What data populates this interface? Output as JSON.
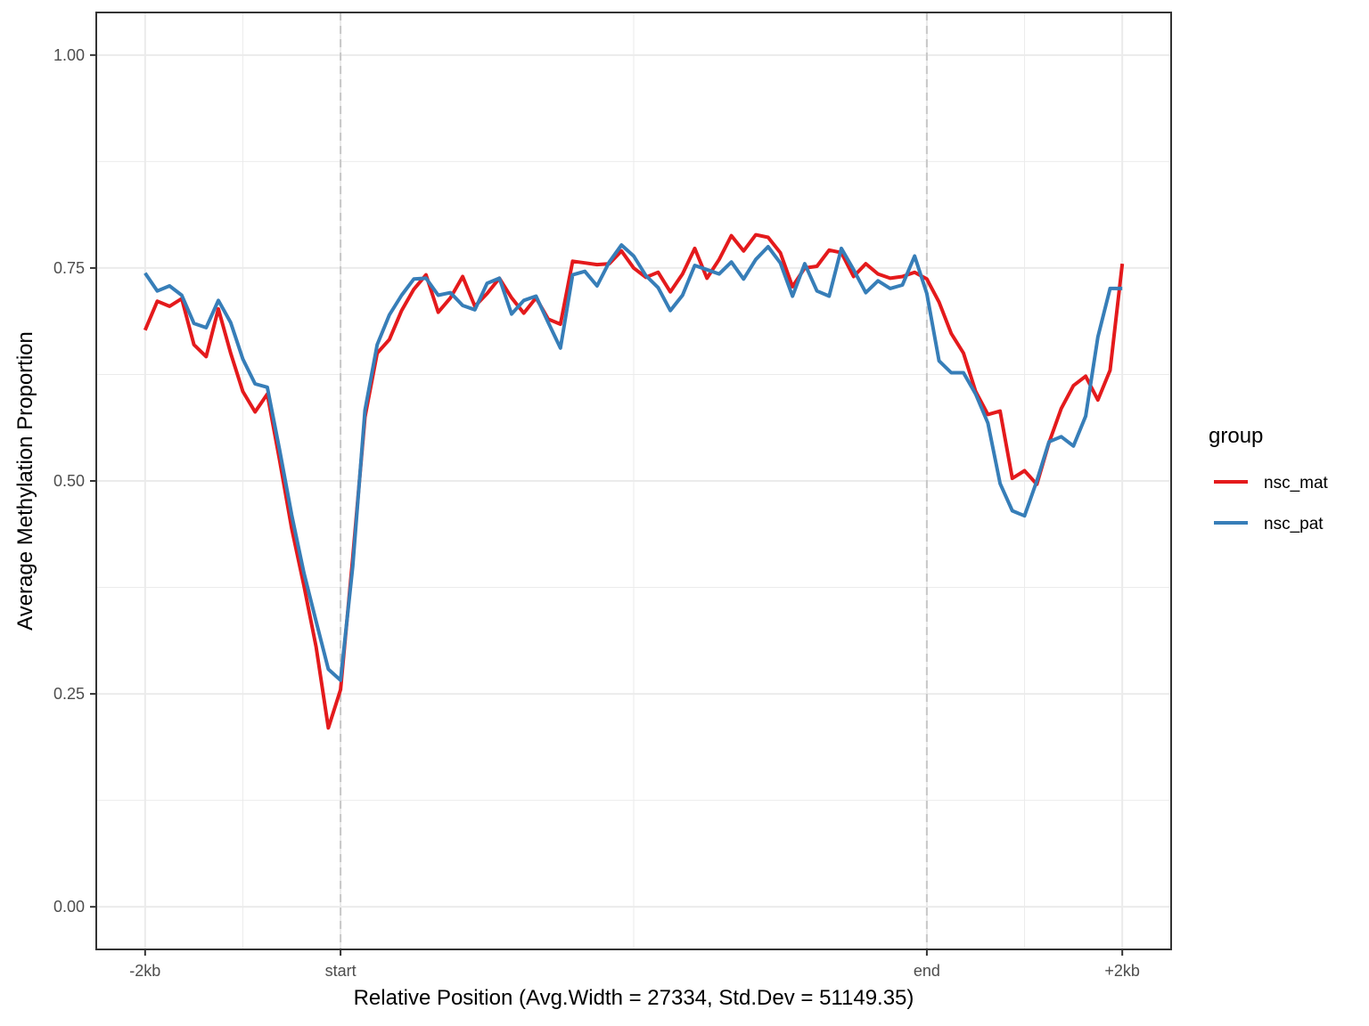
{
  "chart_data": {
    "type": "line",
    "xlabel": "Relative Position (Avg.Width = 27334, Std.Dev = 51149.35)",
    "ylabel": "Average Methylation Proportion",
    "xlim": [
      -0.25,
      5.25
    ],
    "ylim": [
      -0.05,
      1.05
    ],
    "x_ticks": [
      {
        "value": 0,
        "label": "-2kb"
      },
      {
        "value": 1,
        "label": "start"
      },
      {
        "value": 4,
        "label": "end"
      },
      {
        "value": 5,
        "label": "+2kb"
      }
    ],
    "x_minor_grid": [
      0.5,
      2.5,
      4.5
    ],
    "y_ticks": [
      {
        "value": 0.0,
        "label": "0.00"
      },
      {
        "value": 0.25,
        "label": "0.25"
      },
      {
        "value": 0.5,
        "label": "0.50"
      },
      {
        "value": 0.75,
        "label": "0.75"
      },
      {
        "value": 1.0,
        "label": "1.00"
      }
    ],
    "y_minor_grid": [
      0.125,
      0.375,
      0.625,
      0.875
    ],
    "vlines": [
      1,
      4
    ],
    "grid": true,
    "legend": {
      "title": "group",
      "position": "right"
    },
    "series": [
      {
        "name": "nsc_mat",
        "color": "#e41a1c",
        "x": [
          0.0,
          0.0625,
          0.125,
          0.1875,
          0.25,
          0.3125,
          0.375,
          0.4375,
          0.5,
          0.5625,
          0.625,
          0.6875,
          0.75,
          0.8125,
          0.875,
          0.9375,
          1.0,
          1.0,
          1.0625,
          1.125,
          1.1875,
          1.25,
          1.3125,
          1.375,
          1.4375,
          1.5,
          1.5625,
          1.625,
          1.6875,
          1.75,
          1.8125,
          1.875,
          1.9375,
          2.0,
          2.0625,
          2.125,
          2.1875,
          2.25,
          2.3125,
          2.375,
          2.4375,
          2.5,
          2.5625,
          2.625,
          2.6875,
          2.75,
          2.8125,
          2.875,
          2.9375,
          3.0,
          3.0625,
          3.125,
          3.1875,
          3.25,
          3.3125,
          3.375,
          3.4375,
          3.5,
          3.5625,
          3.625,
          3.6875,
          3.75,
          3.8125,
          3.875,
          3.9375,
          4.0,
          4.0625,
          4.125,
          4.1875,
          4.25,
          4.3125,
          4.375,
          4.4375,
          4.5,
          4.5625,
          4.625,
          4.6875,
          4.75,
          4.8125,
          4.875,
          4.9375,
          5.0
        ],
        "values": [
          0.677,
          0.711,
          0.705,
          0.714,
          0.66,
          0.646,
          0.702,
          0.65,
          0.605,
          0.581,
          0.602,
          0.525,
          0.444,
          0.377,
          0.305,
          0.21,
          0.255,
          0.255,
          0.41,
          0.575,
          0.65,
          0.666,
          0.7,
          0.725,
          0.742,
          0.698,
          0.715,
          0.74,
          0.705,
          0.72,
          0.738,
          0.715,
          0.697,
          0.715,
          0.69,
          0.684,
          0.758,
          0.756,
          0.754,
          0.755,
          0.77,
          0.75,
          0.739,
          0.745,
          0.722,
          0.743,
          0.773,
          0.738,
          0.76,
          0.788,
          0.77,
          0.789,
          0.786,
          0.768,
          0.728,
          0.75,
          0.752,
          0.771,
          0.768,
          0.74,
          0.755,
          0.743,
          0.738,
          0.74,
          0.745,
          0.737,
          0.71,
          0.673,
          0.65,
          0.605,
          0.578,
          0.582,
          0.503,
          0.512,
          0.496,
          0.545,
          0.585,
          0.612,
          0.623,
          0.595,
          0.63,
          0.755
        ]
      },
      {
        "name": "nsc_pat",
        "color": "#377eb8",
        "x": [
          0.0,
          0.0625,
          0.125,
          0.1875,
          0.25,
          0.3125,
          0.375,
          0.4375,
          0.5,
          0.5625,
          0.625,
          0.6875,
          0.75,
          0.8125,
          0.875,
          0.9375,
          1.0,
          1.0,
          1.0625,
          1.125,
          1.1875,
          1.25,
          1.3125,
          1.375,
          1.4375,
          1.5,
          1.5625,
          1.625,
          1.6875,
          1.75,
          1.8125,
          1.875,
          1.9375,
          2.0,
          2.0625,
          2.125,
          2.1875,
          2.25,
          2.3125,
          2.375,
          2.4375,
          2.5,
          2.5625,
          2.625,
          2.6875,
          2.75,
          2.8125,
          2.875,
          2.9375,
          3.0,
          3.0625,
          3.125,
          3.1875,
          3.25,
          3.3125,
          3.375,
          3.4375,
          3.5,
          3.5625,
          3.625,
          3.6875,
          3.75,
          3.8125,
          3.875,
          3.9375,
          4.0,
          4.0625,
          4.125,
          4.1875,
          4.25,
          4.3125,
          4.375,
          4.4375,
          4.5,
          4.5625,
          4.625,
          4.6875,
          4.75,
          4.8125,
          4.875,
          4.9375,
          5.0
        ],
        "values": [
          0.744,
          0.723,
          0.729,
          0.718,
          0.685,
          0.68,
          0.712,
          0.686,
          0.643,
          0.614,
          0.61,
          0.537,
          0.46,
          0.392,
          0.335,
          0.279,
          0.266,
          0.266,
          0.4,
          0.583,
          0.66,
          0.695,
          0.718,
          0.737,
          0.738,
          0.718,
          0.721,
          0.706,
          0.701,
          0.732,
          0.738,
          0.696,
          0.712,
          0.717,
          0.686,
          0.656,
          0.742,
          0.746,
          0.729,
          0.757,
          0.777,
          0.764,
          0.741,
          0.727,
          0.7,
          0.718,
          0.753,
          0.748,
          0.743,
          0.757,
          0.737,
          0.76,
          0.775,
          0.756,
          0.717,
          0.755,
          0.723,
          0.717,
          0.773,
          0.748,
          0.721,
          0.735,
          0.726,
          0.73,
          0.764,
          0.72,
          0.641,
          0.627,
          0.627,
          0.602,
          0.568,
          0.497,
          0.465,
          0.459,
          0.5,
          0.546,
          0.552,
          0.541,
          0.576,
          0.669,
          0.726,
          0.726
        ]
      }
    ]
  }
}
